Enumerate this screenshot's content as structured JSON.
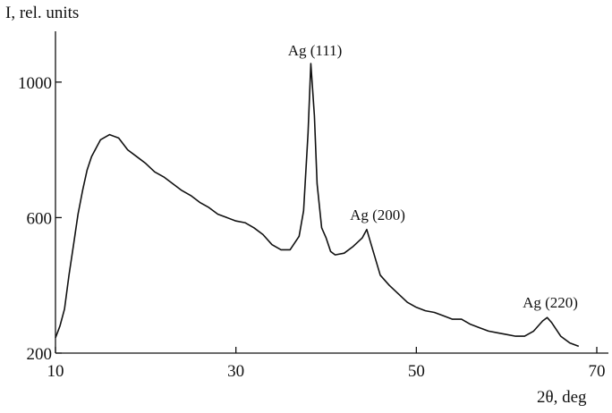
{
  "chart_data": {
    "type": "line",
    "y_label": "I, rel. units",
    "x_label": "2θ, deg",
    "annotations": [
      "Ag (111)",
      "Ag (200)",
      "Ag (220)"
    ],
    "color": "#111111",
    "x": [
      10,
      10.5,
      11,
      11.5,
      12,
      12.5,
      13,
      13.5,
      14,
      15,
      16,
      17,
      18,
      19,
      20,
      21,
      22,
      23,
      24,
      25,
      26,
      27,
      28,
      29,
      30,
      31,
      32,
      33,
      34,
      35,
      36,
      37,
      37.5,
      38,
      38.3,
      38.7,
      39,
      39.5,
      40,
      40.5,
      41,
      42,
      43,
      44,
      44.5,
      45,
      46,
      47,
      48,
      49,
      50,
      51,
      52,
      53,
      54,
      55,
      56,
      57,
      58,
      59,
      60,
      61,
      62,
      63,
      64,
      64.5,
      65,
      66,
      67,
      68
    ],
    "values": [
      245,
      280,
      330,
      430,
      520,
      610,
      680,
      740,
      780,
      830,
      845,
      835,
      800,
      780,
      760,
      735,
      720,
      700,
      680,
      665,
      645,
      630,
      610,
      600,
      590,
      585,
      570,
      550,
      520,
      505,
      505,
      545,
      620,
      850,
      1055,
      900,
      700,
      570,
      540,
      500,
      490,
      495,
      515,
      540,
      565,
      520,
      430,
      400,
      375,
      350,
      335,
      325,
      320,
      310,
      300,
      300,
      285,
      275,
      265,
      260,
      255,
      250,
      250,
      265,
      295,
      305,
      290,
      250,
      230,
      220
    ],
    "xlim": [
      10,
      70
    ],
    "ylim": [
      200,
      1150
    ],
    "xticks": [
      10,
      30,
      50,
      70
    ],
    "yticks": [
      200,
      600,
      1000
    ]
  }
}
